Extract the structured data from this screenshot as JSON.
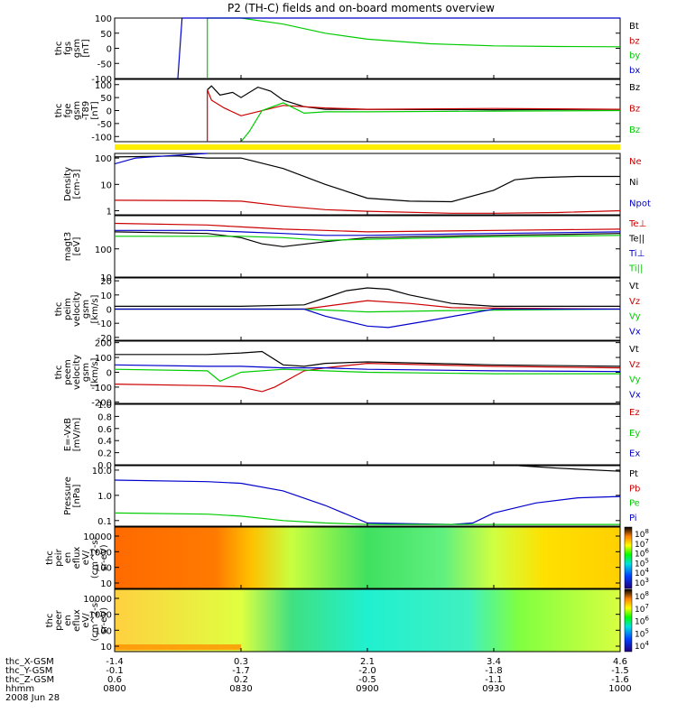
{
  "title": "P2 (TH-C) fields and on-board moments overview",
  "date_label": "2008 Jun 28",
  "colors": {
    "black": "#000000",
    "red": "#cc0000",
    "green": "#00cc00",
    "blue": "#0000cc",
    "yellow": "#ffee00"
  },
  "chart_data": [
    {
      "type": "line",
      "id": "fgs",
      "ylabel": [
        "thc",
        "fgs",
        "gsm",
        "[nT]"
      ],
      "ylim": [
        -100,
        100
      ],
      "ticks": [
        "100",
        "50",
        "0",
        "-50",
        "-100"
      ],
      "tick_values": [
        100,
        50,
        0,
        -50,
        -100
      ],
      "legend": [
        {
          "label": "Bt",
          "color": "black"
        },
        {
          "label": "bz",
          "color": "red"
        },
        {
          "label": "by",
          "color": "green"
        },
        {
          "label": "bx",
          "color": "blue"
        }
      ],
      "series": [
        {
          "name": "by",
          "color": "green",
          "x": [
            "0822",
            "0822",
            "0830",
            "0840",
            "0850",
            "0900",
            "0915",
            "0930",
            "0945",
            "1000"
          ],
          "y": [
            -100,
            100,
            100,
            80,
            50,
            30,
            15,
            8,
            6,
            5
          ]
        },
        {
          "name": "bx",
          "color": "blue",
          "x": [
            "0815",
            "0816",
            "0816",
            "1000"
          ],
          "y": [
            -100,
            100,
            100,
            100
          ]
        }
      ]
    },
    {
      "type": "line",
      "id": "fge",
      "ylabel": [
        "thc",
        "fge",
        "gsm",
        "-T89",
        "[nT]"
      ],
      "ylim": [
        -120,
        120
      ],
      "ticks": [
        "100",
        "50",
        "0",
        "-50",
        "-100"
      ],
      "tick_values": [
        100,
        50,
        0,
        -50,
        -100
      ],
      "legend": [
        {
          "label": "Bz",
          "color": "black"
        },
        {
          "label": "Bz",
          "color": "red"
        },
        {
          "label": "Bz",
          "color": "green"
        }
      ],
      "series": [
        {
          "name": "Bz",
          "color": "black",
          "x": [
            "0822",
            "0823",
            "0825",
            "0828",
            "0830",
            "0834",
            "0837",
            "0840",
            "0845",
            "0850",
            "0900",
            "0930",
            "1000"
          ],
          "y": [
            80,
            95,
            60,
            70,
            50,
            90,
            75,
            40,
            15,
            5,
            5,
            3,
            5
          ]
        },
        {
          "name": "Bz",
          "color": "red",
          "x": [
            "0822",
            "0822",
            "0823",
            "0826",
            "0830",
            "0840",
            "0850",
            "0900",
            "0930",
            "1000"
          ],
          "y": [
            -120,
            80,
            40,
            10,
            -20,
            20,
            10,
            5,
            8,
            5
          ]
        },
        {
          "name": "Bz",
          "color": "green",
          "x": [
            "0830",
            "0832",
            "0835",
            "0840",
            "0845",
            "0850",
            "0900",
            "0930",
            "1000"
          ],
          "y": [
            -120,
            -80,
            0,
            30,
            -10,
            -5,
            -5,
            -2,
            0
          ]
        }
      ]
    },
    {
      "type": "line",
      "id": "density",
      "ylabel": [
        "Density",
        "[cm-3]"
      ],
      "log": true,
      "ylim": [
        0.7,
        150
      ],
      "ticks": [
        "100",
        "10",
        "1"
      ],
      "tick_values": [
        100,
        10,
        1
      ],
      "legend": [
        {
          "label": "Ne",
          "color": "red"
        },
        {
          "label": "Ni",
          "color": "black"
        },
        {
          "label": "Npot",
          "color": "blue"
        }
      ],
      "series": [
        {
          "name": "Ni",
          "color": "black",
          "x": [
            "0800",
            "0815",
            "0822",
            "0830",
            "0840",
            "0850",
            "0900",
            "0910",
            "0920",
            "0930",
            "0935",
            "0940",
            "0950",
            "1000"
          ],
          "y": [
            110,
            120,
            100,
            100,
            40,
            10,
            3,
            2.3,
            2.2,
            6,
            15,
            18,
            20,
            20
          ]
        },
        {
          "name": "Ne",
          "color": "red",
          "x": [
            "0800",
            "0822",
            "0830",
            "0840",
            "0850",
            "0900",
            "0920",
            "0930",
            "0945",
            "1000"
          ],
          "y": [
            2.5,
            2.4,
            2.3,
            1.5,
            1.1,
            0.95,
            0.8,
            0.8,
            0.85,
            1.0
          ]
        },
        {
          "name": "Npot",
          "color": "blue",
          "x": [
            "0800",
            "0805",
            "0812",
            "0822"
          ],
          "y": [
            60,
            100,
            120,
            150
          ]
        }
      ]
    },
    {
      "type": "line",
      "id": "temp",
      "ylabel": [
        "magt3",
        "[eV]"
      ],
      "log": true,
      "ylim": [
        10,
        1500
      ],
      "ticks": [
        "100",
        "10"
      ],
      "tick_values": [
        100,
        10
      ],
      "legend": [
        {
          "label": "Te⊥",
          "color": "red"
        },
        {
          "label": "Te||",
          "color": "black"
        },
        {
          "label": "Ti⊥",
          "color": "blue"
        },
        {
          "label": "Ti||",
          "color": "green"
        }
      ],
      "series": [
        {
          "name": "Te⊥",
          "color": "red",
          "x": [
            "0800",
            "0822",
            "0830",
            "0840",
            "0850",
            "0900",
            "0930",
            "1000"
          ],
          "y": [
            800,
            700,
            600,
            500,
            450,
            400,
            450,
            500
          ]
        },
        {
          "name": "Te||",
          "color": "black",
          "x": [
            "0800",
            "0822",
            "0830",
            "0835",
            "0840",
            "0850",
            "0900",
            "0930",
            "1000"
          ],
          "y": [
            400,
            350,
            250,
            150,
            120,
            180,
            250,
            300,
            350
          ]
        },
        {
          "name": "Ti⊥",
          "color": "blue",
          "x": [
            "0800",
            "0822",
            "0830",
            "0840",
            "0850",
            "0900",
            "0930",
            "1000"
          ],
          "y": [
            450,
            450,
            400,
            350,
            300,
            300,
            350,
            400
          ]
        },
        {
          "name": "Ti||",
          "color": "green",
          "x": [
            "0800",
            "0822",
            "0830",
            "0840",
            "0850",
            "0900",
            "0930",
            "1000"
          ],
          "y": [
            280,
            280,
            280,
            250,
            200,
            220,
            270,
            300
          ]
        }
      ]
    },
    {
      "type": "line",
      "id": "peim",
      "ylabel": [
        "thc",
        "peim",
        "velocity",
        "gsm",
        "[km/s]"
      ],
      "ylim": [
        -22,
        22
      ],
      "ticks": [
        "20",
        "10",
        "0",
        "-10",
        "-20"
      ],
      "tick_values": [
        20,
        10,
        0,
        -10,
        -20
      ],
      "legend": [
        {
          "label": "Vt",
          "color": "black"
        },
        {
          "label": "Vz",
          "color": "red"
        },
        {
          "label": "Vy",
          "color": "green"
        },
        {
          "label": "Vx",
          "color": "blue"
        }
      ],
      "series": [
        {
          "name": "Vt",
          "color": "black",
          "x": [
            "0800",
            "0830",
            "0845",
            "0850",
            "0855",
            "0900",
            "0905",
            "0910",
            "0920",
            "0930",
            "1000"
          ],
          "y": [
            2,
            2,
            3,
            8,
            13,
            15,
            14,
            10,
            4,
            2,
            2
          ]
        },
        {
          "name": "Vz",
          "color": "red",
          "x": [
            "0800",
            "0845",
            "0900",
            "0910",
            "0920",
            "1000"
          ],
          "y": [
            0,
            0,
            6,
            4,
            1,
            0
          ]
        },
        {
          "name": "Vy",
          "color": "green",
          "x": [
            "0800",
            "0845",
            "0900",
            "0920",
            "1000"
          ],
          "y": [
            0,
            0,
            -2,
            -1,
            0
          ]
        },
        {
          "name": "Vx",
          "color": "blue",
          "x": [
            "0800",
            "0845",
            "0850",
            "0900",
            "0905",
            "0915",
            "0930",
            "1000"
          ],
          "y": [
            0,
            0,
            -5,
            -12,
            -13,
            -8,
            0,
            0
          ]
        }
      ]
    },
    {
      "type": "line",
      "id": "peem",
      "ylabel": [
        "thc",
        "peem",
        "velocity",
        "gsm",
        "[km/s]"
      ],
      "ylim": [
        -210,
        210
      ],
      "ticks": [
        "200",
        "100",
        "0",
        "-100",
        "-200"
      ],
      "tick_values": [
        200,
        100,
        0,
        -100,
        -200
      ],
      "legend": [
        {
          "label": "Vt",
          "color": "black"
        },
        {
          "label": "Vz",
          "color": "red"
        },
        {
          "label": "Vy",
          "color": "green"
        },
        {
          "label": "Vx",
          "color": "blue"
        }
      ],
      "series": [
        {
          "name": "Vt",
          "color": "black",
          "x": [
            "0800",
            "0822",
            "0830",
            "0835",
            "0840",
            "0845",
            "0850",
            "0900",
            "0930",
            "1000"
          ],
          "y": [
            120,
            120,
            130,
            140,
            50,
            40,
            60,
            70,
            50,
            40
          ]
        },
        {
          "name": "Vz",
          "color": "red",
          "x": [
            "0800",
            "0822",
            "0830",
            "0835",
            "0838",
            "0845",
            "0850",
            "0900",
            "0930",
            "1000"
          ],
          "y": [
            -80,
            -90,
            -100,
            -130,
            -100,
            10,
            30,
            60,
            40,
            30
          ]
        },
        {
          "name": "Vy",
          "color": "green",
          "x": [
            "0800",
            "0822",
            "0825",
            "0830",
            "0840",
            "0850",
            "0900",
            "0930",
            "1000"
          ],
          "y": [
            20,
            10,
            -60,
            0,
            20,
            10,
            0,
            -10,
            -10
          ]
        },
        {
          "name": "Vx",
          "color": "blue",
          "x": [
            "0800",
            "0822",
            "0830",
            "0840",
            "0850",
            "0900",
            "0930",
            "1000"
          ],
          "y": [
            50,
            40,
            40,
            30,
            30,
            20,
            10,
            5
          ]
        }
      ]
    },
    {
      "type": "line",
      "id": "efield",
      "ylabel": [
        "E=-VxB",
        "[mV/m]"
      ],
      "ylim": [
        0,
        1
      ],
      "ticks": [
        "1.0",
        "0.8",
        "0.6",
        "0.4",
        "0.2",
        "0.0"
      ],
      "tick_values": [
        1.0,
        0.8,
        0.6,
        0.4,
        0.2,
        0.0
      ],
      "legend": [
        {
          "label": "Ez",
          "color": "red"
        },
        {
          "label": "Ey",
          "color": "green"
        },
        {
          "label": "Ex",
          "color": "blue"
        }
      ],
      "series": []
    },
    {
      "type": "line",
      "id": "pressure",
      "ylabel": [
        "Pressure",
        "[nPa]"
      ],
      "log": true,
      "ylim": [
        0.06,
        15
      ],
      "ticks": [
        "10.0",
        "1.0",
        "0.1"
      ],
      "tick_values": [
        10,
        1,
        0.1
      ],
      "legend": [
        {
          "label": "Pt",
          "color": "black"
        },
        {
          "label": "Pb",
          "color": "red"
        },
        {
          "label": "Pe",
          "color": "green"
        },
        {
          "label": "Pi",
          "color": "blue"
        }
      ],
      "series": [
        {
          "name": "Pi",
          "color": "blue",
          "x": [
            "0800",
            "0822",
            "0830",
            "0840",
            "0850",
            "0900",
            "0920",
            "0925",
            "0930",
            "0940",
            "0950",
            "1000"
          ],
          "y": [
            4,
            3.5,
            3,
            1.5,
            0.4,
            0.08,
            0.07,
            0.08,
            0.2,
            0.5,
            0.8,
            0.9
          ]
        },
        {
          "name": "Pe",
          "color": "green",
          "x": [
            "0800",
            "0822",
            "0830",
            "0840",
            "0850",
            "0900",
            "0930",
            "1000"
          ],
          "y": [
            0.2,
            0.18,
            0.15,
            0.1,
            0.08,
            0.07,
            0.07,
            0.07
          ]
        },
        {
          "name": "Pt",
          "color": "black",
          "x": [
            "0936",
            "0945",
            "1000"
          ],
          "y": [
            15,
            12,
            9
          ]
        }
      ]
    },
    {
      "type": "heatmap",
      "id": "peir",
      "ylabel": [
        "thc",
        "peir",
        "en",
        "eflux",
        "eV/",
        "(cm^2-s-",
        "sr-eV)"
      ],
      "ticks": [
        "10000",
        "1000",
        "100",
        "10"
      ],
      "colorbar": [
        "10^8",
        "10^7",
        "10^6",
        "10^5",
        "10^4",
        "10^3"
      ]
    },
    {
      "type": "heatmap",
      "id": "peer",
      "ylabel": [
        "thc",
        "peer",
        "en",
        "eflux",
        "eV/",
        "(cm^2-s-",
        "sr-eV)"
      ],
      "ticks": [
        "10000",
        "1000",
        "100",
        "10"
      ],
      "colorbar": [
        "10^8",
        "10^7",
        "10^6",
        "10^5",
        "10^4"
      ]
    }
  ],
  "x_axis": {
    "row_labels": [
      "thc_X-GSM",
      "thc_Y-GSM",
      "thc_Z-GSM",
      "hhmm"
    ],
    "columns": [
      {
        "x": "0800",
        "X": "-1.4",
        "Y": "-0.1",
        "Z": "0.6",
        "hhmm": "0800"
      },
      {
        "x": "0830",
        "X": "0.3",
        "Y": "-1.7",
        "Z": "0.2",
        "hhmm": "0830"
      },
      {
        "x": "0900",
        "X": "2.1",
        "Y": "-2.0",
        "Z": "-0.5",
        "hhmm": "0900"
      },
      {
        "x": "0930",
        "X": "3.4",
        "Y": "-1.8",
        "Z": "-1.1",
        "hhmm": "0930"
      },
      {
        "x": "1000",
        "X": "4.6",
        "Y": "-1.5",
        "Z": "-1.6",
        "hhmm": "1000"
      }
    ]
  }
}
